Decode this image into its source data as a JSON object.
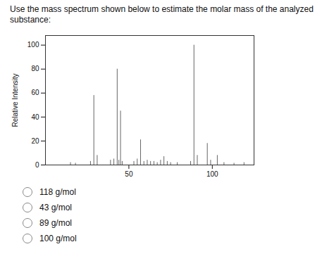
{
  "chart_data": {
    "type": "bar",
    "title": "Use the mass spectrum shown below to estimate the molar mass of the analyzed substance:",
    "ylabel": "Relative Intensity",
    "x": [
      15,
      18,
      27,
      29,
      31,
      39,
      41,
      43,
      44,
      45,
      46,
      53,
      55,
      57,
      59,
      61,
      63,
      65,
      67,
      69,
      71,
      73,
      75,
      79,
      87,
      89,
      91,
      97,
      99,
      103,
      107,
      113,
      119
    ],
    "values": [
      2,
      1.5,
      3,
      58,
      8,
      4,
      5,
      80,
      4,
      45,
      3,
      3,
      5,
      21,
      3,
      4,
      3,
      3,
      2,
      4,
      7,
      3,
      2,
      2,
      3,
      100,
      8,
      18,
      4,
      8,
      2,
      1.5,
      2
    ],
    "color": "#666666",
    "xlim": [
      0,
      125
    ],
    "xticks": [
      50,
      100
    ],
    "ylim": [
      0,
      108
    ],
    "yticks": [
      0,
      20,
      40,
      60,
      80,
      100
    ],
    "grid": false,
    "annotations": [
      "118 g/mol",
      "43 g/mol",
      "89 g/mol",
      "100 g/mol"
    ]
  }
}
